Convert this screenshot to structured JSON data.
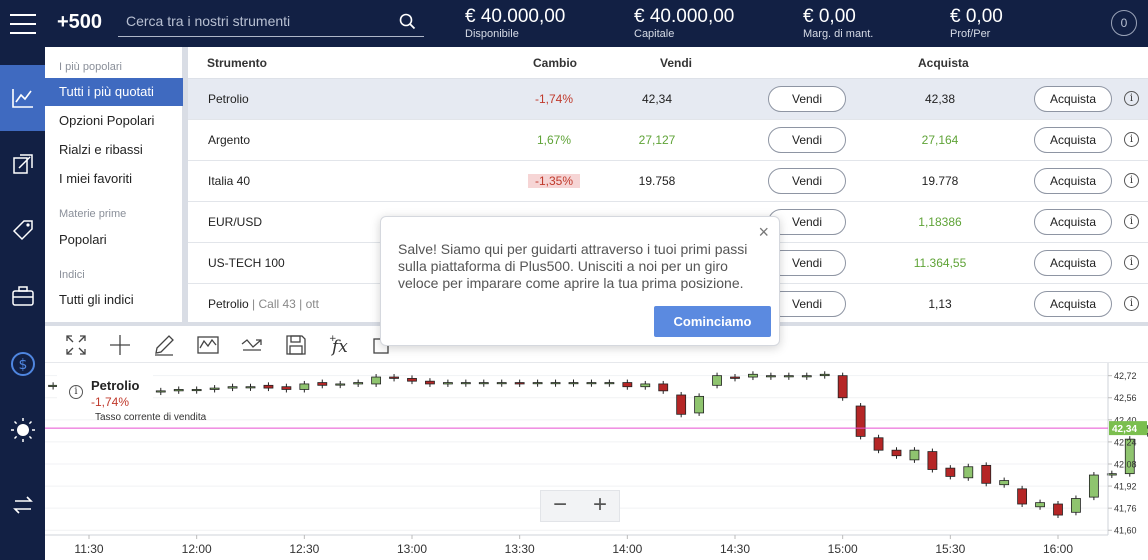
{
  "header": {
    "logo": "+500",
    "search_placeholder": "Cerca tra i nostri strumenti",
    "account": [
      {
        "value": "€ 40.000,00",
        "label": "Disponibile"
      },
      {
        "value": "€ 40.000,00",
        "label": "Capitale"
      },
      {
        "value": "€ 0,00",
        "label": "Marg. di mant."
      },
      {
        "value": "€ 0,00",
        "label": "Prof/Per"
      }
    ],
    "notifications": "0"
  },
  "rail": {
    "icons": [
      "chart-line-icon",
      "trade-arrows-icon",
      "tag-icon",
      "briefcase-icon",
      "dollar-icon",
      "brightness-icon",
      "switch-icon"
    ]
  },
  "categories": {
    "group1": "I più popolari",
    "items1": [
      "Tutti i più quotati",
      "Opzioni Popolari",
      "Rialzi e ribassi",
      "I miei favoriti"
    ],
    "group2": "Materie prime",
    "items2": [
      "Popolari"
    ],
    "group3": "Indici",
    "items3": [
      "Tutti gli indici"
    ]
  },
  "table": {
    "headers": {
      "instrument": "Strumento",
      "change": "Cambio",
      "sell": "Vendi",
      "buy": "Acquista"
    },
    "sell_button": "Vendi",
    "buy_button": "Acquista",
    "info": "i",
    "rows": [
      {
        "name": "Petrolio",
        "sub": "",
        "change": "-1,74%",
        "sell": "42,34",
        "buy": "42,38"
      },
      {
        "name": "Argento",
        "sub": "",
        "change": "1,67%",
        "sell": "27,127",
        "buy": "27,164"
      },
      {
        "name": "Italia 40",
        "sub": "",
        "change": "-1,35%",
        "sell": "19.758",
        "buy": "19.778"
      },
      {
        "name": "EUR/USD",
        "sub": "",
        "change": "",
        "sell": "",
        "buy": "1,18386"
      },
      {
        "name": "US-TECH 100",
        "sub": "",
        "change": "",
        "sell": "",
        "buy": "11.364,55"
      },
      {
        "name": "Petrolio",
        "sub": " | Call 43 | ott",
        "change": "",
        "sell": "",
        "buy": "1,13"
      }
    ]
  },
  "tooltip": {
    "text": "Salve! Siamo qui per guidarti attraverso i tuoi primi passi sulla piattaforma di Plus500. Unisciti a noi per un giro veloce per imparare come aprire la tua prima posizione.",
    "close": "×",
    "button": "Cominciamo"
  },
  "chart_legend": {
    "name": "Petrolio",
    "change": "-1,74%",
    "subtitle": "Tasso corrente di vendita",
    "info": "i"
  },
  "zoom": {
    "minus": "−",
    "plus": "+"
  },
  "chart_data": {
    "type": "candlestick",
    "x_ticks": [
      "11:30",
      "12:00",
      "12:30",
      "13:00",
      "13:30",
      "14:00",
      "14:30",
      "15:00",
      "15:30",
      "16:00"
    ],
    "y_ticks": [
      "42,72",
      "42,56",
      "42,40",
      "42,24",
      "42,08",
      "41,92",
      "41,76",
      "41,60"
    ],
    "ylim": [
      41.58,
      42.79
    ],
    "current_price": 42.34,
    "current_price_label": "42,34",
    "candles": [
      {
        "t": "11:20",
        "o": 42.65,
        "c": 42.65
      },
      {
        "t": "11:25",
        "o": 42.63,
        "c": 42.64
      },
      {
        "t": "11:30",
        "o": 42.62,
        "c": 42.63
      },
      {
        "t": "11:35",
        "o": 42.61,
        "c": 42.62
      },
      {
        "t": "11:40",
        "o": 42.62,
        "c": 42.62
      },
      {
        "t": "11:45",
        "o": 42.62,
        "c": 42.62
      },
      {
        "t": "11:50",
        "o": 42.61,
        "c": 42.61
      },
      {
        "t": "11:55",
        "o": 42.61,
        "c": 42.62
      },
      {
        "t": "12:00",
        "o": 42.62,
        "c": 42.62
      },
      {
        "t": "12:05",
        "o": 42.62,
        "c": 42.63
      },
      {
        "t": "12:10",
        "o": 42.63,
        "c": 42.64
      },
      {
        "t": "12:15",
        "o": 42.64,
        "c": 42.64
      },
      {
        "t": "12:20",
        "o": 42.65,
        "c": 42.63
      },
      {
        "t": "12:25",
        "o": 42.64,
        "c": 42.62
      },
      {
        "t": "12:30",
        "o": 42.62,
        "c": 42.66
      },
      {
        "t": "12:35",
        "o": 42.67,
        "c": 42.65
      },
      {
        "t": "12:40",
        "o": 42.66,
        "c": 42.66
      },
      {
        "t": "12:45",
        "o": 42.66,
        "c": 42.67
      },
      {
        "t": "12:50",
        "o": 42.66,
        "c": 42.71
      },
      {
        "t": "12:55",
        "o": 42.71,
        "c": 42.7
      },
      {
        "t": "13:00",
        "o": 42.7,
        "c": 42.68
      },
      {
        "t": "13:05",
        "o": 42.68,
        "c": 42.66
      },
      {
        "t": "13:10",
        "o": 42.66,
        "c": 42.67
      },
      {
        "t": "13:15",
        "o": 42.67,
        "c": 42.67
      },
      {
        "t": "13:20",
        "o": 42.67,
        "c": 42.67
      },
      {
        "t": "13:25",
        "o": 42.67,
        "c": 42.67
      },
      {
        "t": "13:30",
        "o": 42.67,
        "c": 42.66
      },
      {
        "t": "13:35",
        "o": 42.67,
        "c": 42.67
      },
      {
        "t": "13:40",
        "o": 42.67,
        "c": 42.67
      },
      {
        "t": "13:45",
        "o": 42.67,
        "c": 42.67
      },
      {
        "t": "13:50",
        "o": 42.67,
        "c": 42.67
      },
      {
        "t": "13:55",
        "o": 42.67,
        "c": 42.67
      },
      {
        "t": "14:00",
        "o": 42.67,
        "c": 42.64
      },
      {
        "t": "14:05",
        "o": 42.64,
        "c": 42.66
      },
      {
        "t": "14:10",
        "o": 42.66,
        "c": 42.61
      },
      {
        "t": "14:15",
        "o": 42.58,
        "c": 42.44
      },
      {
        "t": "14:20",
        "o": 42.45,
        "c": 42.57
      },
      {
        "t": "14:25",
        "o": 42.65,
        "c": 42.72
      },
      {
        "t": "14:30",
        "o": 42.71,
        "c": 42.7
      },
      {
        "t": "14:35",
        "o": 42.71,
        "c": 42.73
      },
      {
        "t": "14:40",
        "o": 42.72,
        "c": 42.72
      },
      {
        "t": "14:45",
        "o": 42.72,
        "c": 42.72
      },
      {
        "t": "14:50",
        "o": 42.72,
        "c": 42.72
      },
      {
        "t": "14:55",
        "o": 42.72,
        "c": 42.73
      },
      {
        "t": "15:00",
        "o": 42.72,
        "c": 42.56
      },
      {
        "t": "15:05",
        "o": 42.5,
        "c": 42.28
      },
      {
        "t": "15:10",
        "o": 42.27,
        "c": 42.18
      },
      {
        "t": "15:15",
        "o": 42.18,
        "c": 42.14
      },
      {
        "t": "15:20",
        "o": 42.11,
        "c": 42.18
      },
      {
        "t": "15:25",
        "o": 42.17,
        "c": 42.04
      },
      {
        "t": "15:30",
        "o": 42.05,
        "c": 41.99
      },
      {
        "t": "15:35",
        "o": 41.98,
        "c": 42.06
      },
      {
        "t": "15:40",
        "o": 42.07,
        "c": 41.94
      },
      {
        "t": "15:45",
        "o": 41.93,
        "c": 41.96
      },
      {
        "t": "15:50",
        "o": 41.9,
        "c": 41.79
      },
      {
        "t": "15:55",
        "o": 41.77,
        "c": 41.8
      },
      {
        "t": "16:00",
        "o": 41.79,
        "c": 41.71
      },
      {
        "t": "16:05",
        "o": 41.73,
        "c": 41.83
      },
      {
        "t": "16:10",
        "o": 41.84,
        "c": 42.0
      },
      {
        "t": "16:15",
        "o": 42.0,
        "c": 42.01
      },
      {
        "t": "16:20",
        "o": 42.01,
        "c": 42.26
      },
      {
        "t": "16:25",
        "o": 42.3,
        "c": 42.34
      }
    ]
  },
  "colors": {
    "nav_bg": "#122044",
    "accent": "#3f6ac0",
    "up": "#8fc46f",
    "down": "#b52626",
    "price_line": "#e64fd2",
    "price_badge": "#7bbf4f"
  }
}
